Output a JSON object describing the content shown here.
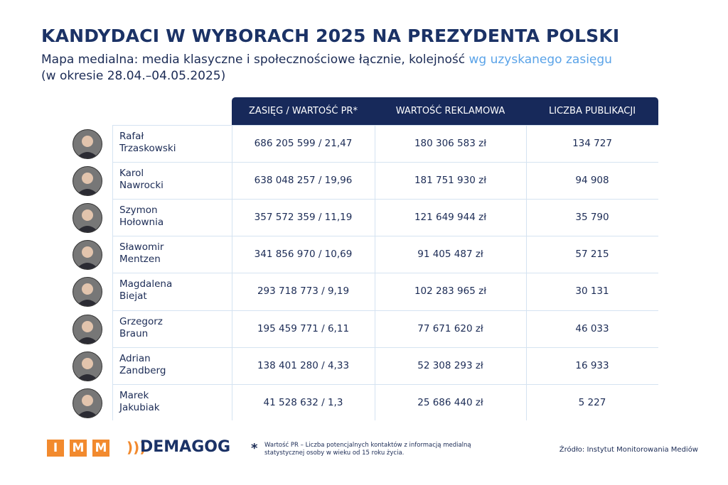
{
  "header": {
    "title": "KANDYDACI W WYBORACH 2025 NA PREZYDENTA POLSKI",
    "subtitle": "Mapa medialna: media klasyczne i społecznościowe łącznie, kolejność",
    "subtitle_highlight": "wg uzyskanego zasięgu",
    "period": "(w okresie 28.04.–04.05.2025)"
  },
  "table": {
    "columns": [
      "ZASIĘG / WARTOŚĆ PR*",
      "WARTOŚĆ REKLAMOWA",
      "LICZBA PUBLIKACJI"
    ],
    "rows": [
      {
        "first_name": "Rafał",
        "last_name": "Trzaskowski",
        "cells": [
          "686 205 599 / 21,47",
          "180 306 583 zł",
          "134 727"
        ]
      },
      {
        "first_name": "Karol",
        "last_name": "Nawrocki",
        "cells": [
          "638 048 257 / 19,96",
          "181 751 930 zł",
          "94 908"
        ]
      },
      {
        "first_name": "Szymon",
        "last_name": "Hołownia",
        "cells": [
          "357 572 359 / 11,19",
          "121 649 944 zł",
          "35 790"
        ]
      },
      {
        "first_name": "Sławomir",
        "last_name": "Mentzen",
        "cells": [
          "341 856 970 / 10,69",
          "91 405 487 zł",
          "57 215"
        ]
      },
      {
        "first_name": "Magdalena",
        "last_name": "Biejat",
        "cells": [
          "293 718 773 / 9,19",
          "102 283 965 zł",
          "30 131"
        ]
      },
      {
        "first_name": "Grzegorz",
        "last_name": "Braun",
        "cells": [
          "195 459 771 / 6,11",
          "77 671 620 zł",
          "46 033"
        ]
      },
      {
        "first_name": "Adrian",
        "last_name": "Zandberg",
        "cells": [
          "138 401 280 / 4,33",
          "52 308 293 zł",
          "16 933"
        ]
      },
      {
        "first_name": "Marek",
        "last_name": "Jakubiak",
        "cells": [
          "41 528 632 / 1,3",
          "25 686 440 zł",
          "5 227"
        ]
      }
    ]
  },
  "footer": {
    "imm_letters": [
      "I",
      "M",
      "M"
    ],
    "demagog": "DEMAGOG",
    "note_mark": "*",
    "note": "Wartość PR – Liczba potencjalnych kontaktów z informacją medialną statystycznej osoby w wieku od 15 roku życia.",
    "source": "Źródło: Instytut Monitorowania Mediów"
  }
}
